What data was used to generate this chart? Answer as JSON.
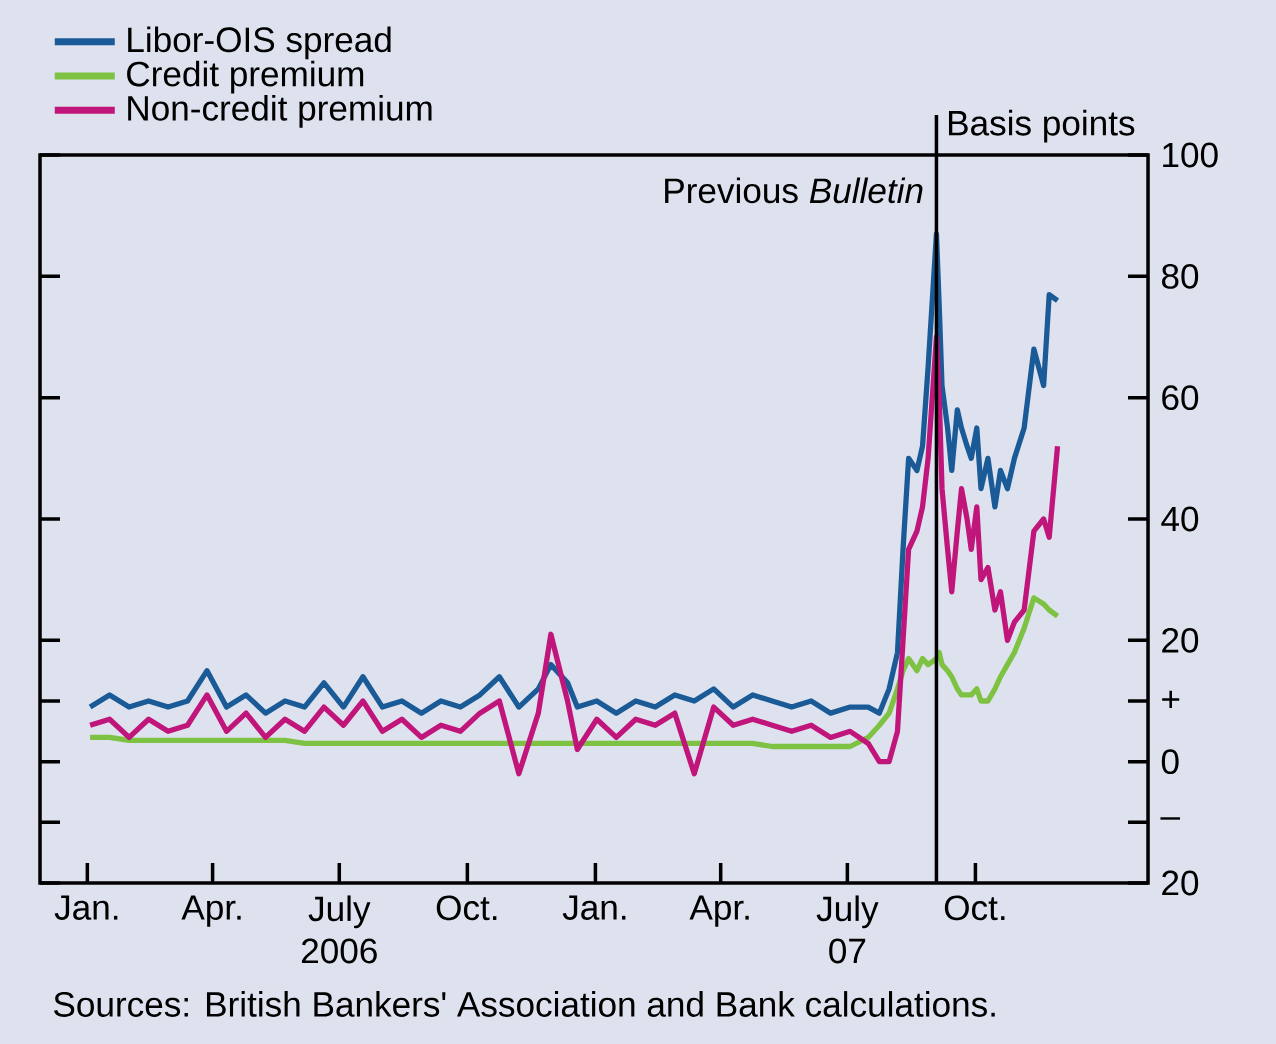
{
  "chart_data": {
    "type": "line",
    "ylabel": "Basis points",
    "x": [
      "2006-01-03",
      "2006-01-17",
      "2006-01-31",
      "2006-02-14",
      "2006-02-28",
      "2006-03-14",
      "2006-03-28",
      "2006-04-11",
      "2006-04-25",
      "2006-05-09",
      "2006-05-23",
      "2006-06-06",
      "2006-06-20",
      "2006-07-04",
      "2006-07-18",
      "2006-08-01",
      "2006-08-15",
      "2006-08-29",
      "2006-09-12",
      "2006-09-26",
      "2006-10-10",
      "2006-10-24",
      "2006-11-07",
      "2006-11-21",
      "2006-11-30",
      "2006-12-12",
      "2006-12-19",
      "2007-01-02",
      "2007-01-16",
      "2007-01-30",
      "2007-02-13",
      "2007-02-27",
      "2007-03-13",
      "2007-03-27",
      "2007-04-10",
      "2007-04-24",
      "2007-05-08",
      "2007-05-22",
      "2007-06-05",
      "2007-06-19",
      "2007-07-03",
      "2007-07-16",
      "2007-07-24",
      "2007-07-31",
      "2007-08-06",
      "2007-08-10",
      "2007-08-14",
      "2007-08-20",
      "2007-08-24",
      "2007-08-28",
      "2007-09-03",
      "2007-09-05",
      "2007-09-07",
      "2007-09-11",
      "2007-09-14",
      "2007-09-18",
      "2007-09-21",
      "2007-09-25",
      "2007-09-28",
      "2007-10-02",
      "2007-10-05",
      "2007-10-10",
      "2007-10-15",
      "2007-10-19",
      "2007-10-24",
      "2007-10-29",
      "2007-11-05",
      "2007-11-12",
      "2007-11-19",
      "2007-11-23",
      "2007-11-29"
    ],
    "series": [
      {
        "name": "Libor-OIS spread",
        "color": "#1a5a96",
        "values": [
          9,
          11,
          9,
          10,
          9,
          10,
          15,
          9,
          11,
          8,
          10,
          9,
          13,
          9,
          14,
          9,
          10,
          8,
          10,
          9,
          11,
          14,
          9,
          12,
          16,
          13,
          9,
          10,
          8,
          10,
          9,
          11,
          10,
          12,
          9,
          11,
          10,
          9,
          10,
          8,
          9,
          9,
          8,
          12,
          18,
          35,
          50,
          48,
          52,
          65,
          87,
          75,
          62,
          55,
          48,
          58,
          55,
          52,
          50,
          55,
          45,
          50,
          42,
          48,
          45,
          50,
          55,
          68,
          62,
          77,
          76
        ]
      },
      {
        "name": "Credit premium",
        "color": "#7dc242",
        "values": [
          4,
          4,
          3.5,
          3.5,
          3.5,
          3.5,
          3.5,
          3.5,
          3.5,
          3.5,
          3.5,
          3,
          3,
          3,
          3,
          3,
          3,
          3,
          3,
          3,
          3,
          3,
          3,
          3,
          3,
          3,
          3,
          3,
          3,
          3,
          3,
          3,
          3,
          3,
          3,
          3,
          2.5,
          2.5,
          2.5,
          2.5,
          2.5,
          4,
          6,
          8,
          12,
          15,
          17,
          15,
          17,
          16,
          17,
          18,
          16,
          15,
          14,
          12,
          11,
          11,
          11,
          12,
          10,
          10,
          12,
          14,
          16,
          18,
          22,
          27,
          26,
          25,
          24
        ]
      },
      {
        "name": "Non-credit premium",
        "color": "#c0157a",
        "values": [
          6,
          7,
          4,
          7,
          5,
          6,
          11,
          5,
          8,
          4,
          7,
          5,
          9,
          6,
          10,
          5,
          7,
          4,
          6,
          5,
          8,
          10,
          -2,
          8,
          21,
          10,
          2,
          7,
          4,
          7,
          6,
          8,
          -2,
          9,
          6,
          7,
          6,
          5,
          6,
          4,
          5,
          3,
          0,
          0,
          5,
          20,
          35,
          38,
          42,
          50,
          70,
          60,
          45,
          35,
          28,
          38,
          45,
          40,
          35,
          42,
          30,
          32,
          25,
          28,
          20,
          23,
          25,
          38,
          40,
          37,
          52
        ]
      }
    ],
    "xlim": [
      "2005-11-28",
      "2008-02-02"
    ],
    "xticks": [
      {
        "value": "2006-01-01",
        "label": "Jan."
      },
      {
        "value": "2006-04-01",
        "label": "Apr."
      },
      {
        "value": "2006-07-01",
        "label": "July 2006"
      },
      {
        "value": "2006-10-01",
        "label": "Oct."
      },
      {
        "value": "2007-01-01",
        "label": "Jan."
      },
      {
        "value": "2007-04-01",
        "label": "Apr."
      },
      {
        "value": "2007-07-01",
        "label": "July 07"
      },
      {
        "value": "2007-10-01",
        "label": "Oct."
      }
    ],
    "ylim": [
      -20,
      100
    ],
    "yticks": [
      {
        "value": -20,
        "label": "20"
      },
      {
        "value": -10,
        "label": "–"
      },
      0,
      {
        "value": 10,
        "label": "+"
      },
      20,
      40,
      60,
      80,
      100
    ],
    "ref_lines": [
      {
        "axis": "x",
        "value": "2007-09-03",
        "label": "Previous *Bulletin*",
        "color": "#000000"
      }
    ],
    "legend": "top left",
    "grid": false,
    "annotations": [
      "Sources: British Bankers' Association and Bank calculations."
    ]
  }
}
